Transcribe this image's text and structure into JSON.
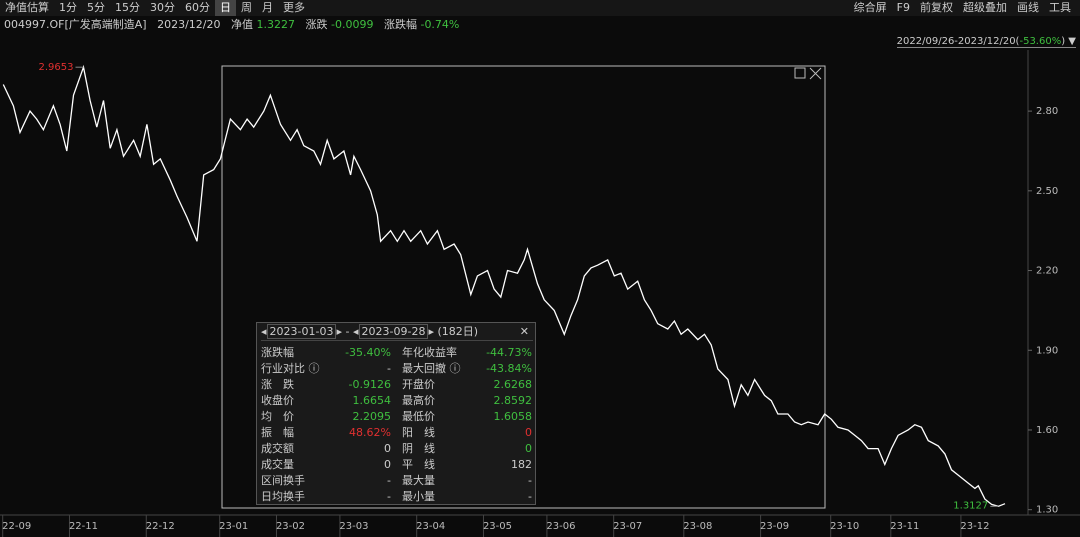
{
  "toolbar": {
    "left": [
      "净值估算",
      "1分",
      "5分",
      "15分",
      "30分",
      "60分",
      "日",
      "周",
      "月",
      "更多"
    ],
    "active": 6,
    "right": [
      "综合屏",
      "F9",
      "前复权",
      "超级叠加",
      "画线",
      "工具"
    ]
  },
  "quote": {
    "code": "004997.OF[广发高端制造A]",
    "date": "2023/12/20",
    "nav_label": "净值",
    "nav": "1.3227",
    "change_label": "涨跌",
    "change": "-0.0099",
    "pct_label": "涨跌幅",
    "pct": "-0.74%"
  },
  "range_label": {
    "period": "2022/09/26-2023/12/20(",
    "pct": "-53.60%",
    "close": ")"
  },
  "chart_data": {
    "type": "line",
    "xlim": [
      -1,
      306
    ],
    "ylim": [
      1.28,
      3.03
    ],
    "yticks": [
      {
        "value": 1.3,
        "label": "1.30"
      },
      {
        "value": 1.6,
        "label": "1.60"
      },
      {
        "value": 1.9,
        "label": "1.90"
      },
      {
        "value": 2.2,
        "label": "2.20"
      },
      {
        "value": 2.5,
        "label": "2.50"
      },
      {
        "value": 2.8,
        "label": "2.80"
      }
    ],
    "xticks": [
      {
        "value": 4,
        "label": "22-09"
      },
      {
        "value": 24,
        "label": "22-11"
      },
      {
        "value": 47,
        "label": "22-12"
      },
      {
        "value": 69,
        "label": "23-01"
      },
      {
        "value": 86,
        "label": "23-02"
      },
      {
        "value": 105,
        "label": "23-03"
      },
      {
        "value": 128,
        "label": "23-04"
      },
      {
        "value": 148,
        "label": "23-05"
      },
      {
        "value": 167,
        "label": "23-06"
      },
      {
        "value": 187,
        "label": "23-07"
      },
      {
        "value": 208,
        "label": "23-08"
      },
      {
        "value": 231,
        "label": "23-09"
      },
      {
        "value": 252,
        "label": "23-10"
      },
      {
        "value": 270,
        "label": "23-11"
      },
      {
        "value": 291,
        "label": "23-12"
      }
    ],
    "series": [
      {
        "color": "#ffffff",
        "x": [
          0,
          3,
          5,
          8,
          10,
          12,
          15,
          17,
          19,
          21,
          24,
          26,
          28,
          30,
          32,
          34,
          36,
          39,
          41,
          43,
          45,
          47,
          50,
          52,
          55,
          58,
          60,
          63,
          65,
          68,
          71,
          73,
          75,
          78,
          80,
          83,
          86,
          88,
          90,
          93,
          95,
          97,
          99,
          102,
          104,
          105,
          107,
          110,
          112,
          113,
          116,
          118,
          120,
          122,
          125,
          127,
          130,
          132,
          135,
          137,
          140,
          142,
          145,
          147,
          149,
          151,
          154,
          156,
          157,
          160,
          162,
          165,
          168,
          170,
          172,
          174,
          176,
          178,
          181,
          183,
          185,
          187,
          190,
          192,
          194,
          196,
          199,
          201,
          203,
          205,
          208,
          210,
          212,
          214,
          217,
          219,
          221,
          223,
          225,
          228,
          230,
          232,
          235,
          237,
          239,
          241,
          244,
          246,
          248,
          250,
          253,
          255,
          257,
          259,
          262,
          264,
          266,
          268,
          271,
          273,
          275,
          277,
          280,
          282,
          284,
          286,
          289,
          291,
          292,
          294,
          296,
          298,
          300
        ],
        "values": [
          2.9,
          2.82,
          2.72,
          2.8,
          2.77,
          2.73,
          2.82,
          2.75,
          2.65,
          2.86,
          2.9653,
          2.84,
          2.74,
          2.84,
          2.66,
          2.73,
          2.63,
          2.69,
          2.63,
          2.75,
          2.6,
          2.62,
          2.54,
          2.48,
          2.4,
          2.31,
          2.56,
          2.58,
          2.62,
          2.77,
          2.73,
          2.77,
          2.74,
          2.8,
          2.86,
          2.75,
          2.69,
          2.73,
          2.67,
          2.65,
          2.6,
          2.69,
          2.62,
          2.65,
          2.56,
          2.63,
          2.58,
          2.5,
          2.41,
          2.31,
          2.35,
          2.31,
          2.35,
          2.31,
          2.35,
          2.3,
          2.35,
          2.28,
          2.3,
          2.26,
          2.11,
          2.18,
          2.2,
          2.13,
          2.1,
          2.2,
          2.19,
          2.24,
          2.28,
          2.15,
          2.09,
          2.05,
          1.96,
          2.03,
          2.09,
          2.18,
          2.21,
          2.22,
          2.24,
          2.18,
          2.19,
          2.13,
          2.16,
          2.09,
          2.05,
          2.0,
          1.98,
          2.01,
          1.96,
          1.98,
          1.94,
          1.96,
          1.92,
          1.83,
          1.79,
          1.69,
          1.77,
          1.73,
          1.79,
          1.73,
          1.71,
          1.66,
          1.66,
          1.63,
          1.62,
          1.63,
          1.62,
          1.66,
          1.64,
          1.61,
          1.6,
          1.58,
          1.56,
          1.53,
          1.53,
          1.47,
          1.53,
          1.58,
          1.6,
          1.62,
          1.61,
          1.56,
          1.54,
          1.51,
          1.45,
          1.43,
          1.4,
          1.38,
          1.39,
          1.34,
          1.32,
          1.3127,
          1.3227
        ]
      }
    ],
    "max_color": "#e03030",
    "min_color": "#3fbf3f"
  },
  "panel": {
    "start": "2023-01-03",
    "sep": "-",
    "end": "2023-09-28",
    "days": "(182日)",
    "rows": [
      [
        {
          "label": "涨跌幅",
          "value": "-35.40%",
          "color": "#3fbf3f"
        },
        {
          "label": "年化收益率",
          "value": "-44.73%",
          "color": "#3fbf3f"
        }
      ],
      [
        {
          "label": "行业对比 ⓘ",
          "value": "-",
          "color": "#cccccc"
        },
        {
          "label": "最大回撤 ⓘ",
          "value": "-43.84%",
          "color": "#3fbf3f"
        }
      ],
      [
        {
          "label": "涨　跌",
          "value": "-0.9126",
          "color": "#3fbf3f"
        },
        {
          "label": "开盘价",
          "value": "2.6268",
          "color": "#3fbf3f"
        }
      ],
      [
        {
          "label": "收盘价",
          "value": "1.6654",
          "color": "#3fbf3f"
        },
        {
          "label": "最高价",
          "value": "2.8592",
          "color": "#3fbf3f"
        }
      ],
      [
        {
          "label": "均　价",
          "value": "2.2095",
          "color": "#3fbf3f"
        },
        {
          "label": "最低价",
          "value": "1.6058",
          "color": "#3fbf3f"
        }
      ],
      [
        {
          "label": "振　幅",
          "value": "48.62%",
          "color": "#e03030"
        },
        {
          "label": "阳　线",
          "value": "0",
          "color": "#e03030"
        }
      ],
      [
        {
          "label": "成交额",
          "value": "0",
          "color": "#cccccc"
        },
        {
          "label": "阴　线",
          "value": "0",
          "color": "#3fbf3f"
        }
      ],
      [
        {
          "label": "成交量",
          "value": "0",
          "color": "#cccccc"
        },
        {
          "label": "平　线",
          "value": "182",
          "color": "#cccccc"
        }
      ],
      [
        {
          "label": "区间换手",
          "value": "-",
          "color": "#cccccc"
        },
        {
          "label": "最大量",
          "value": "-",
          "color": "#cccccc"
        }
      ],
      [
        {
          "label": "日均换手",
          "value": "-",
          "color": "#cccccc"
        },
        {
          "label": "最小量",
          "value": "-",
          "color": "#cccccc"
        }
      ]
    ]
  }
}
